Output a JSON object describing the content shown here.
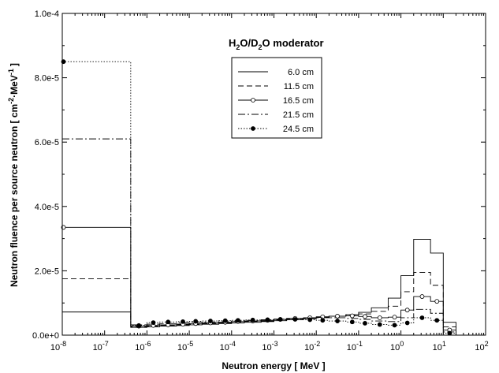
{
  "chart_data": {
    "type": "line",
    "style": "step-histogram",
    "x_scale": "log",
    "xlim": [
      1e-08,
      100
    ],
    "ylim": [
      0,
      0.0001
    ],
    "xlabel": "Neutron energy  [ MeV ]",
    "ylabel_main": "Neutron fluence per source neutron  [ cm",
    "ylabel_sup1": "-2",
    "ylabel_mid": "·MeV",
    "ylabel_sup2": "-1",
    "ylabel_end": "]",
    "x_tick_base": "10",
    "x_tick_exponents": [
      "-8",
      "-7",
      "-6",
      "-5",
      "-4",
      "-3",
      "-2",
      "-1",
      "0",
      "1",
      "2"
    ],
    "y_ticks": [
      0,
      2e-05,
      4e-05,
      6e-05,
      8e-05,
      0.0001
    ],
    "y_tick_labels": [
      "0.0e+0",
      "2.0e-5",
      "4.0e-5",
      "6.0e-5",
      "8.0e-5",
      "1.0e-4"
    ],
    "legend": {
      "title_parts": [
        "H",
        "2",
        "O/D",
        "2",
        "O moderator"
      ],
      "placement": "top-right"
    },
    "bin_edges": [
      1e-08,
      4.14e-07,
      1e-06,
      2e-06,
      5e-06,
      1e-05,
      2e-05,
      5e-05,
      0.0001,
      0.0002,
      0.0005,
      0.001,
      0.002,
      0.005,
      0.01,
      0.02,
      0.05,
      0.1,
      0.2,
      0.5,
      1,
      2,
      5,
      10,
      20
    ],
    "series": [
      {
        "name": "6.0 cm",
        "style": "solid",
        "values": [
          7.2e-06,
          2.4e-06,
          2.6e-06,
          2.8e-06,
          3e-06,
          3.2e-06,
          3.4e-06,
          3.6e-06,
          3.8e-06,
          4e-06,
          4.2e-06,
          4.5e-06,
          4.8e-06,
          5.1e-06,
          5.5e-06,
          5.9e-06,
          6.4e-06,
          7.1e-06,
          8.5e-06,
          1.15e-05,
          1.85e-05,
          2.98e-05,
          2.55e-05,
          4e-06
        ]
      },
      {
        "name": "11.5 cm",
        "style": "dashed",
        "values": [
          1.75e-05,
          2.6e-06,
          2.8e-06,
          3e-06,
          3.2e-06,
          3.4e-06,
          3.6e-06,
          3.8e-06,
          4e-06,
          4.2e-06,
          4.4e-06,
          4.7e-06,
          5e-06,
          5.3e-06,
          5.6e-06,
          5.9e-06,
          6.2e-06,
          6.6e-06,
          7.4e-06,
          9e-06,
          1.35e-05,
          1.95e-05,
          1.55e-05,
          2.6e-06
        ]
      },
      {
        "name": "16.5 cm",
        "style": "solid-open-circle",
        "values": [
          3.35e-05,
          2.8e-06,
          3e-06,
          3.2e-06,
          3.4e-06,
          3.6e-06,
          3.8e-06,
          4e-06,
          4.2e-06,
          4.4e-06,
          4.6e-06,
          4.9e-06,
          5.2e-06,
          5.4e-06,
          5.7e-06,
          5.9e-06,
          6e-06,
          5.8e-06,
          5.4e-06,
          5.6e-06,
          7.8e-06,
          1.2e-05,
          1.05e-05,
          1.6e-06
        ]
      },
      {
        "name": "21.5 cm",
        "style": "dashdot",
        "values": [
          6.1e-05,
          3.2e-06,
          3.4e-06,
          3.6e-06,
          3.8e-06,
          4e-06,
          4.1e-06,
          4.2e-06,
          4.4e-06,
          4.6e-06,
          4.8e-06,
          5e-06,
          5.2e-06,
          5.3e-06,
          5.4e-06,
          5.4e-06,
          5.2e-06,
          4.9e-06,
          4.4e-06,
          4.2e-06,
          5.4e-06,
          8e-06,
          6.8e-06,
          1e-06
        ]
      },
      {
        "name": "24.5 cm",
        "style": "dotted-filled-circle",
        "values": [
          8.5e-05,
          3e-06,
          3.9e-06,
          4.1e-06,
          4.2e-06,
          4.3e-06,
          4.4e-06,
          4.5e-06,
          4.6e-06,
          4.7e-06,
          4.8e-06,
          4.9e-06,
          4.9e-06,
          4.8e-06,
          4.6e-06,
          4.4e-06,
          4.1e-06,
          3.7e-06,
          3.3e-06,
          3.1e-06,
          3.8e-06,
          5.4e-06,
          4.6e-06,
          6e-07
        ]
      }
    ]
  }
}
